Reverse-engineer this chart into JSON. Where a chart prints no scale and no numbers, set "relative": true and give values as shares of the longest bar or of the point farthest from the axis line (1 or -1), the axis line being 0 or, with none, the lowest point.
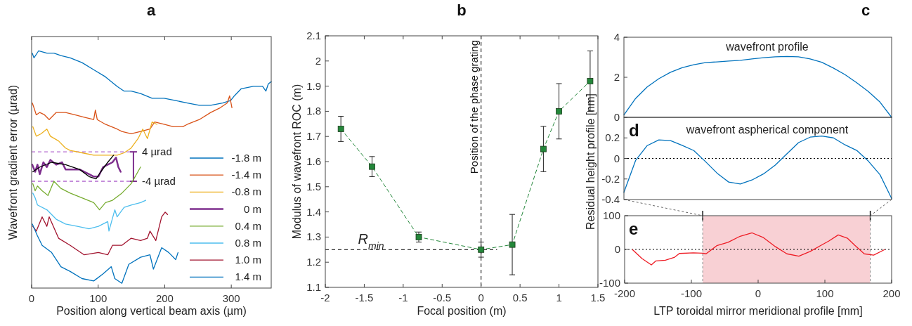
{
  "chart_data": [
    {
      "type": "line",
      "title": "a",
      "xlabel": "Position along vertical beam axis (µm)",
      "ylabel": "Wavefront gradient error  (µrad)",
      "relative": true,
      "xlim": [
        0,
        360
      ],
      "xticks": [
        0,
        100,
        200,
        300
      ],
      "tick_labels": "x",
      "legend": "bottom right",
      "ref_lines": [
        {
          "axis": "y",
          "value": 0.574,
          "label": "4 µrad",
          "color": "#b36ad0",
          "line_style": "dashed"
        },
        {
          "axis": "y",
          "value": 0.45,
          "label": "-4 µrad",
          "color": "#b36ad0",
          "line_style": "dashed"
        }
      ],
      "series": [
        {
          "name": "-1.8 m",
          "color": "#0072bd",
          "x": [
            1,
            3.5,
            10.6,
            22.9,
            33.5,
            44,
            58,
            75.7,
            93.3,
            111,
            128.5,
            139,
            149.6,
            163.7,
            181,
            199,
            216.5,
            234,
            252,
            269,
            287,
            299,
            304.6,
            315,
            333,
            347,
            352,
            355.6,
            360
          ],
          "values": [
            0.99,
            0.97,
            1,
            0.99,
            0.99,
            0.98,
            0.97,
            0.95,
            0.92,
            0.89,
            0.85,
            0.83,
            0.83,
            0.82,
            0.8,
            0.8,
            0.79,
            0.78,
            0.77,
            0.77,
            0.78,
            0.79,
            0.81,
            0.84,
            0.85,
            0.85,
            0.83,
            0.86,
            0.87
          ]
        },
        {
          "name": "-1.4 m",
          "color": "#d95319",
          "x": [
            1,
            3.5,
            7,
            12.3,
            19.4,
            26.4,
            37,
            51,
            65,
            79,
            93.3,
            95.8,
            98.6,
            111,
            128.5,
            135.6,
            149.6,
            163.7,
            177.8,
            184.9,
            199,
            213,
            227,
            234,
            252,
            269,
            283.5,
            294,
            297.5,
            301
          ],
          "values": [
            0.78,
            0.76,
            0.73,
            0.74,
            0.73,
            0.71,
            0.74,
            0.74,
            0.73,
            0.72,
            0.71,
            0.75,
            0.71,
            0.69,
            0.67,
            0.66,
            0.65,
            0.66,
            0.67,
            0.7,
            0.69,
            0.68,
            0.68,
            0.69,
            0.71,
            0.74,
            0.76,
            0.78,
            0.81,
            0.76
          ]
        },
        {
          "name": "-0.8 m",
          "color": "#edb120",
          "x": [
            1.8,
            7,
            14,
            22.9,
            28.2,
            40.5,
            51,
            58,
            75.7,
            93.3,
            111,
            128.5,
            139,
            149.6,
            160,
            167,
            174,
            181,
            188.4
          ],
          "values": [
            0.68,
            0.64,
            0.65,
            0.67,
            0.64,
            0.62,
            0.59,
            0.58,
            0.57,
            0.56,
            0.56,
            0.56,
            0.57,
            0.59,
            0.63,
            0.67,
            0.63,
            0.7,
            0.69
          ]
        },
        {
          "name": "0 m",
          "color": "#7e2f8e",
          "x": [
            1,
            5.3,
            8.8,
            12.3,
            17.6,
            22.9,
            28.2,
            37,
            45.8,
            51,
            58,
            72,
            86.3,
            93.3,
            100.4,
            107.4,
            114.4,
            121.5,
            126.8,
            130.3,
            133.8
          ],
          "values": [
            0.52,
            0.49,
            0.52,
            0.48,
            0.53,
            0.51,
            0.54,
            0.52,
            0.53,
            0.5,
            0.5,
            0.5,
            0.48,
            0.47,
            0.47,
            0.51,
            0.52,
            0.53,
            0.55,
            0.51,
            0.49
          ]
        },
        {
          "color": "#000000",
          "x": [
            1.8,
            12.3,
            30,
            51,
            72,
            86.3,
            96.8,
            103.9,
            114.4,
            123.2
          ],
          "values": [
            0.49,
            0.51,
            0.53,
            0.52,
            0.5,
            0.47,
            0.46,
            0.49,
            0.53,
            0.56
          ]
        },
        {
          "name": "0.4 m",
          "color": "#77ac30",
          "x": [
            1.8,
            5.3,
            8.8,
            15.8,
            24.6,
            33.5,
            44,
            58,
            75.7,
            93.3,
            102,
            111,
            121.5,
            135.6,
            149.6,
            163.7
          ],
          "values": [
            0.44,
            0.41,
            0.43,
            0.41,
            0.39,
            0.45,
            0.42,
            0.4,
            0.38,
            0.36,
            0.33,
            0.36,
            0.37,
            0.4,
            0.44,
            0.51
          ]
        },
        {
          "name": "0.8 m",
          "color": "#4dbeee",
          "x": [
            1.8,
            5.3,
            8.8,
            22.9,
            37,
            51,
            68.7,
            86.3,
            100.4,
            114.4,
            116.2,
            125,
            128.5,
            139,
            149.6,
            163.7,
            171.5
          ],
          "values": [
            0.4,
            0.38,
            0.35,
            0.33,
            0.29,
            0.27,
            0.26,
            0.25,
            0.26,
            0.28,
            0.24,
            0.33,
            0.3,
            0.34,
            0.35,
            0.36,
            0.37
          ]
        },
        {
          "name": "1.0 m",
          "color": "#a2142f",
          "x": [
            1.8,
            7,
            15.8,
            22.9,
            26.4,
            40.5,
            58,
            79,
            100.4,
            114.4,
            121.5,
            135.6,
            149.6,
            163.7,
            174,
            177.8,
            186.6,
            195.4,
            200.7,
            204.2
          ],
          "values": [
            0.26,
            0.24,
            0.3,
            0.26,
            0.3,
            0.21,
            0.18,
            0.14,
            0.15,
            0.14,
            0.18,
            0.18,
            0.21,
            0.2,
            0.21,
            0.24,
            0.2,
            0.3,
            0.32,
            0.31
          ]
        },
        {
          "name": "1.4 m",
          "color": "#0072bd",
          "x": [
            1,
            8.8,
            15.8,
            30,
            44,
            58,
            75.7,
            93.3,
            107.4,
            119.7,
            125,
            135.6,
            146,
            163.7,
            177.8,
            183,
            195.4,
            206,
            216.5,
            220
          ],
          "values": [
            0.27,
            0.22,
            0.18,
            0.15,
            0.09,
            0.07,
            0.04,
            0.03,
            0.06,
            0.09,
            0.04,
            0.02,
            0.1,
            0.13,
            0.14,
            0.08,
            0.17,
            0.15,
            0.12,
            0.15
          ]
        }
      ]
    },
    {
      "type": "line",
      "title": "b",
      "xlabel": "Focal position (m)",
      "ylabel": "Modulus of wavefront ROC (m)",
      "xlim": [
        -2,
        1.5
      ],
      "xticks": [
        -2,
        -1.5,
        -1,
        -0.5,
        0,
        0.5,
        1,
        1.5
      ],
      "ylim": [
        1.1,
        2.1
      ],
      "yticks": [
        1.1,
        1.2,
        1.3,
        1.4,
        1.5,
        1.6,
        1.7,
        1.8,
        1.9,
        2,
        2.1
      ],
      "marker": "square",
      "line_style": "dashed",
      "ref_lines": [
        {
          "axis": "x",
          "value": 0,
          "label": "Position of the phase grating",
          "line_style": "dashed",
          "color": "#000000"
        },
        {
          "axis": "y",
          "value": 1.25,
          "label": "R$_{min}$",
          "line_style": "dashed",
          "color": "#000000"
        }
      ],
      "series": [
        {
          "color": "#23873a",
          "x": [
            -1.8,
            -1.4,
            -0.8,
            0,
            0.4,
            0.8,
            1,
            1.4
          ],
          "values": [
            1.73,
            1.58,
            1.3,
            1.25,
            1.27,
            1.65,
            1.8,
            1.92
          ],
          "errors": [
            [
              1.68,
              1.78
            ],
            [
              1.54,
              1.62
            ],
            [
              1.28,
              1.32
            ],
            [
              1.22,
              1.28
            ],
            [
              1.15,
              1.39
            ],
            [
              1.56,
              1.74
            ],
            [
              1.69,
              1.91
            ],
            [
              1.8,
              2.04
            ]
          ]
        }
      ]
    },
    {
      "type": "line",
      "title": "c",
      "subtitle": "wavefront profile",
      "categories": [
        null,
        null,
        null,
        null,
        null,
        null,
        null,
        null,
        null,
        null,
        null,
        null,
        null,
        null,
        null,
        null,
        null,
        null,
        null,
        null,
        null,
        null,
        null,
        null
      ],
      "ylim": [
        0,
        4
      ],
      "yticks": [
        0,
        2,
        4
      ],
      "series": [
        {
          "color": "#0072bd",
          "values": [
            0.12,
            0.94,
            1.52,
            1.93,
            2.25,
            2.48,
            2.63,
            2.73,
            2.77,
            2.81,
            2.85,
            2.92,
            2.98,
            3.02,
            3.04,
            3.02,
            2.92,
            2.75,
            2.46,
            2.13,
            1.73,
            1.29,
            0.76,
            0
          ]
        }
      ]
    },
    {
      "type": "line",
      "title": "d",
      "subtitle": "wavefront aspherical component",
      "ylabel": "Residual height profile [nm]",
      "categories": [
        null,
        null,
        null,
        null,
        null,
        null,
        null,
        null,
        null,
        null,
        null,
        null,
        null,
        null,
        null,
        null,
        null,
        null,
        null,
        null,
        null,
        null,
        null,
        null
      ],
      "ylim": [
        -0.4,
        0.4
      ],
      "yticks": [
        -0.4,
        -0.2,
        0,
        0.2
      ],
      "ref_lines": [
        {
          "axis": "y",
          "value": 0,
          "line_style": "dotted",
          "color": "#000000"
        }
      ],
      "series": [
        {
          "color": "#0072bd",
          "values": [
            -0.33,
            -0.02,
            0.125,
            0.18,
            0.173,
            0.127,
            0.077,
            -0.03,
            -0.143,
            -0.23,
            -0.249,
            -0.21,
            -0.15,
            -0.065,
            0.045,
            0.154,
            0.207,
            0.218,
            0.2,
            0.132,
            0.078,
            -0.026,
            -0.158,
            -0.39
          ]
        }
      ]
    },
    {
      "type": "line",
      "title": "e",
      "xlabel": "LTP toroidal mirror meridional profile [mm]",
      "xlim": [
        -200,
        200
      ],
      "xticks": [
        -200,
        -100,
        0,
        100,
        200
      ],
      "ylim": [
        -100,
        100
      ],
      "yticks": [
        -100,
        0,
        100
      ],
      "bands": [
        {
          "axis": "x",
          "from": -83,
          "to": 168,
          "color": "#f8d0d4"
        }
      ],
      "ref_lines": [
        {
          "axis": "y",
          "value": 0,
          "line_style": "dotted",
          "color": "#000000"
        },
        {
          "axis": "x",
          "value": -83,
          "line_style": "dashed",
          "color": "#888888"
        },
        {
          "axis": "x",
          "value": 168,
          "line_style": "dashed",
          "color": "#888888"
        }
      ],
      "series": [
        {
          "color": "#ee1c25",
          "x": [
            -188,
            -174,
            -160,
            -153,
            -139,
            -125,
            -118,
            -97,
            -83,
            -78,
            -62,
            -45,
            -27,
            -9,
            8,
            26,
            43,
            61,
            78,
            96,
            106,
            120,
            134,
            145,
            159,
            173,
            189
          ],
          "values": [
            -1,
            -27,
            -46,
            -34,
            -32,
            -23,
            -12,
            -10,
            -11,
            -13,
            11,
            21,
            39,
            49,
            35,
            8,
            -13,
            -20,
            -6,
            14,
            25,
            43,
            33,
            12,
            -13,
            -17,
            -1
          ]
        }
      ]
    }
  ]
}
